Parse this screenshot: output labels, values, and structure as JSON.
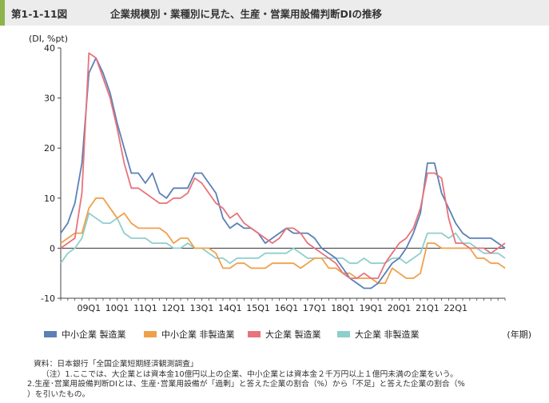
{
  "header": {
    "figure_label": "第1-1-11図",
    "title": "企業規模別・業種別に見た、生産・営業用設備判断DIの推移"
  },
  "chart_data": {
    "type": "line",
    "title": "企業規模別・業種別に見た、生産・営業用設備判断DIの推移",
    "ylabel": "(DI, %pt)",
    "xlabel": "(年期)",
    "ylim": [
      -10,
      40
    ],
    "yticks": [
      -10,
      0,
      10,
      20,
      30,
      40
    ],
    "x_tick_labels": [
      "09Q1",
      "10Q1",
      "11Q1",
      "12Q1",
      "13Q1",
      "14Q1",
      "15Q1",
      "16Q1",
      "17Q1",
      "18Q1",
      "19Q1",
      "20Q1",
      "21Q1",
      "22Q1"
    ],
    "x_start": "08Q1",
    "x_end": "22Q4",
    "grid": false,
    "zero_line": true,
    "legend_position": "bottom",
    "series": [
      {
        "name": "中小企業 製造業",
        "color": "#5b80b6",
        "values": [
          3,
          5,
          9,
          17,
          35,
          38,
          35,
          31,
          25,
          20,
          15,
          15,
          13,
          15,
          11,
          10,
          12,
          12,
          12,
          15,
          15,
          13,
          11,
          6,
          4,
          5,
          4,
          4,
          3,
          1,
          2,
          3,
          4,
          3,
          3,
          3,
          2,
          0,
          -1,
          -2,
          -4,
          -6,
          -7,
          -8,
          -8,
          -7,
          -5,
          -3,
          -2,
          0,
          3,
          7,
          17,
          17,
          11,
          8,
          5,
          3,
          2,
          2,
          2,
          2,
          1,
          0
        ]
      },
      {
        "name": "中小企業 非製造業",
        "color": "#f0a04b",
        "values": [
          1,
          2,
          3,
          3,
          8,
          10,
          10,
          8,
          6,
          7,
          5,
          4,
          4,
          4,
          4,
          3,
          1,
          2,
          2,
          0,
          0,
          0,
          -1,
          -4,
          -4,
          -3,
          -3,
          -4,
          -4,
          -4,
          -3,
          -3,
          -3,
          -3,
          -4,
          -3,
          -2,
          -2,
          -4,
          -4,
          -5,
          -5,
          -6,
          -6,
          -6,
          -7,
          -7,
          -4,
          -5,
          -6,
          -6,
          -5,
          1,
          1,
          0,
          0,
          0,
          0,
          0,
          -2,
          -2,
          -3,
          -3,
          -4
        ]
      },
      {
        "name": "大企業 製造業",
        "color": "#e8737b",
        "values": [
          0,
          1,
          2,
          11,
          39,
          38,
          34,
          30,
          24,
          17,
          12,
          12,
          11,
          10,
          9,
          9,
          10,
          10,
          11,
          14,
          13,
          11,
          9,
          8,
          6,
          7,
          5,
          4,
          3,
          2,
          1,
          2,
          4,
          4,
          3,
          1,
          0,
          -1,
          -2,
          -3,
          -5,
          -6,
          -6,
          -5,
          -6,
          -6,
          -3,
          -1,
          1,
          2,
          4,
          8,
          15,
          15,
          14,
          6,
          1,
          1,
          0,
          0,
          0,
          -1,
          0,
          1
        ]
      },
      {
        "name": "大企業 非製造業",
        "color": "#8ecfcb",
        "values": [
          -3,
          -1,
          0,
          2,
          7,
          6,
          5,
          5,
          6,
          3,
          2,
          2,
          2,
          1,
          1,
          1,
          0,
          0,
          1,
          0,
          0,
          -1,
          -2,
          -2,
          -3,
          -2,
          -2,
          -2,
          -2,
          -1,
          -1,
          -1,
          -1,
          0,
          -1,
          -2,
          -2,
          -2,
          -2,
          -2,
          -2,
          -3,
          -3,
          -2,
          -3,
          -3,
          -3,
          -2,
          -2,
          -3,
          -2,
          -1,
          3,
          3,
          3,
          2,
          3,
          1,
          1,
          0,
          -1,
          -1,
          -1,
          -2
        ]
      }
    ]
  },
  "notes": [
    "資料：日本銀行「全国企業短期経済観測調査」",
    "（注）1.ここでは、大企業とは資本金10億円以上の企業、中小企業とは資本金２千万円以上１億円未満の企業をいう。",
    "2.生産･営業用設備判断DIとは、生産･営業用設備が「過剰」と答えた企業の割合（%）から「不足」と答えた企業の割合（%",
    "）を引いたもの。"
  ]
}
